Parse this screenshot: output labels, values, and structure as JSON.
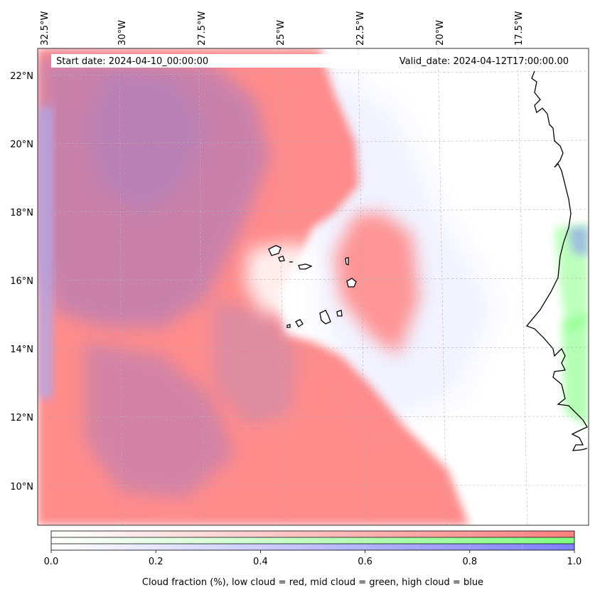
{
  "map": {
    "region": "Cape Verde / NW Africa coast",
    "lon_labels": [
      "32.5°W",
      "30°W",
      "27.5°W",
      "25°W",
      "22.5°W",
      "20°W",
      "17.5°W"
    ],
    "lat_labels": [
      "22°N",
      "20°N",
      "18°N",
      "16°N",
      "14°N",
      "12°N",
      "10°N"
    ],
    "start_date": "Start date: 2024-04-10_00:00:00",
    "valid_date": "Valid_date: 2024-04-12T17:00:00.00"
  },
  "colorbar": {
    "ticks": [
      "0.0",
      "0.2",
      "0.4",
      "0.6",
      "0.8",
      "1.0"
    ],
    "caption": "Cloud fraction (%), low cloud = red, mid cloud = green, high cloud = blue",
    "colors": {
      "low": "#ff7f7f",
      "mid": "#80ff80",
      "high": "#7f7fff"
    }
  }
}
